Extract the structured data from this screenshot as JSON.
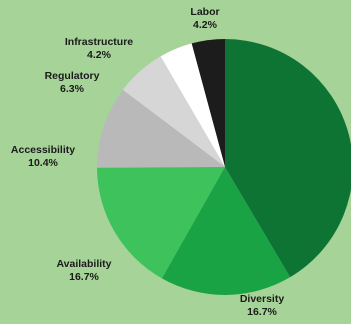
{
  "chart_data": {
    "type": "pie",
    "slices": [
      {
        "label": "Labor",
        "value_label": "4.2%",
        "value": 4.2,
        "color": "#1c1c1c"
      },
      {
        "label": "Infrastructure",
        "value_label": "4.2%",
        "value": 4.2,
        "color": "#ffffff"
      },
      {
        "label": "Regulatory",
        "value_label": "6.3%",
        "value": 6.3,
        "color": "#d6d6d6"
      },
      {
        "label": "Accessibility",
        "value_label": "10.4%",
        "value": 10.4,
        "color": "#b9b9b9"
      },
      {
        "label": "Availability",
        "value_label": "16.7%",
        "value": 16.7,
        "color": "#3ec25c"
      },
      {
        "label": "Diversity",
        "value_label": "16.7%",
        "value": 16.7,
        "color": "#1aa345"
      },
      {
        "label": "",
        "value_label": "",
        "value": 41.5,
        "color": "#0e7433"
      }
    ]
  }
}
